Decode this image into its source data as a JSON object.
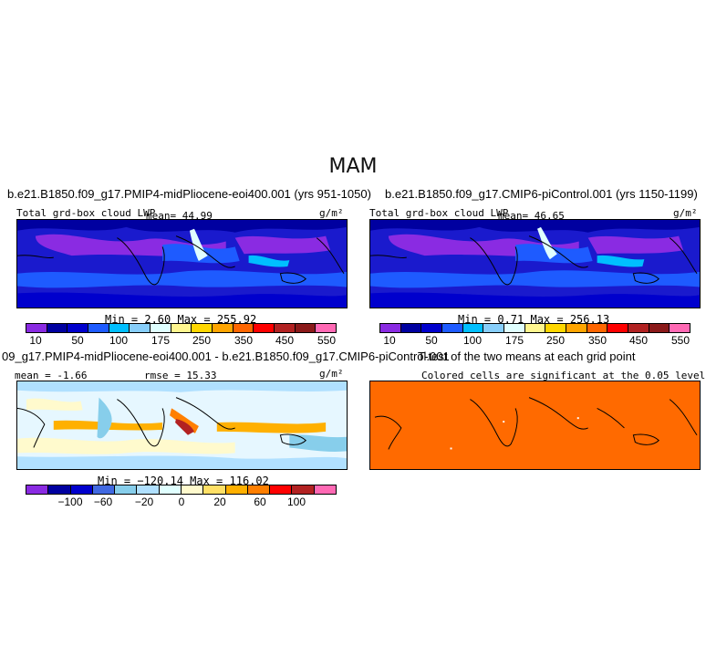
{
  "figure": {
    "title": "MAM"
  },
  "panels": [
    {
      "title": "b.e21.B1850.f09_g17.PMIP4-midPliocene-eoi400.001 (yrs 951-1050)",
      "variable": "Total grd-box cloud LWP",
      "stat_left": "mean=  44.99",
      "units": "g/m²",
      "minmax": "Min =    2.60  Max = 255.92",
      "colorbar_ticks": [
        "10",
        "50",
        "100",
        "175",
        "250",
        "350",
        "450",
        "550"
      ]
    },
    {
      "title": "b.e21.B1850.f09_g17.CMIP6-piControl.001 (yrs 1150-1199)",
      "variable": "Total grd-box cloud LWP",
      "stat_left": "mean=  46.65",
      "units": "g/m²",
      "minmax": "Min =    0.71  Max = 256.13",
      "colorbar_ticks": [
        "10",
        "50",
        "100",
        "175",
        "250",
        "350",
        "450",
        "550"
      ]
    },
    {
      "title": "09_g17.PMIP4-midPliocene-eoi400.001 - b.e21.B1850.f09_g17.CMIP6-piControl.001",
      "stat_left": "mean =  -1.66",
      "stat_right": "rmse =  15.33",
      "units": "g/m²",
      "minmax": "Min = −120.14  Max = 116.02",
      "colorbar_ticks": [
        "−100",
        "−60",
        "−20",
        "0",
        "20",
        "60",
        "100"
      ]
    },
    {
      "title": "T-test of the two means at each grid point",
      "subtitle": "Colored cells are significant at the 0.05 level"
    }
  ],
  "colors": {
    "abs_palette": [
      "#8a2be2",
      "#0000a0",
      "#0000cd",
      "#1e5bff",
      "#00bfff",
      "#87cefa",
      "#e0ffff",
      "#fff68f",
      "#ffd700",
      "#ffa500",
      "#ff6600",
      "#ff0000",
      "#b22222",
      "#8b1a1a",
      "#ff69b4"
    ],
    "diff_palette": [
      "#8a2be2",
      "#0000a0",
      "#0000cd",
      "#4169e1",
      "#87ceeb",
      "#b0e0ff",
      "#e0ffff",
      "#fffacd",
      "#ffe066",
      "#ffb000",
      "#ff7f00",
      "#ff0000",
      "#b22222",
      "#ff69b4"
    ],
    "ttest_fill": "#ff6a00",
    "map_base_abs": "#1a1acd",
    "map_base_diff": "#e6f7ff"
  }
}
